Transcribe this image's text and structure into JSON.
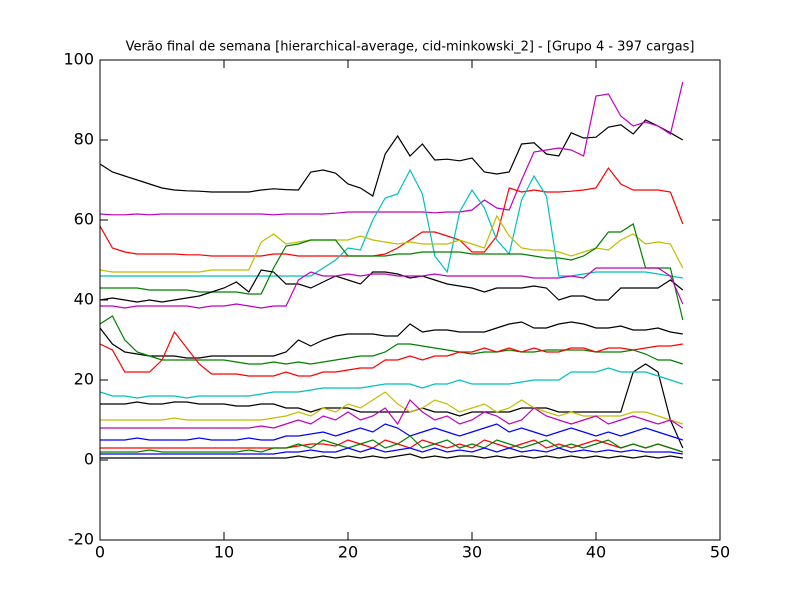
{
  "chart_data": {
    "type": "line",
    "title": "Verão final de semana [hierarchical-average, cid-minkowski_2] - [Grupo 4 - 397 cargas]",
    "x": [
      0,
      1,
      2,
      3,
      4,
      5,
      6,
      7,
      8,
      9,
      10,
      11,
      12,
      13,
      14,
      15,
      16,
      17,
      18,
      19,
      20,
      21,
      22,
      23,
      24,
      25,
      26,
      27,
      28,
      29,
      30,
      31,
      32,
      33,
      34,
      35,
      36,
      37,
      38,
      39,
      40,
      41,
      42,
      43,
      44,
      45,
      46,
      47
    ],
    "xlim": [
      0,
      50
    ],
    "xticks": [
      0,
      10,
      20,
      30,
      40,
      50
    ],
    "ylim": [
      -20,
      100
    ],
    "yticks": [
      -20,
      0,
      20,
      40,
      60,
      80,
      100
    ],
    "grid": false,
    "series": [
      {
        "color": "#000000",
        "values": [
          74,
          72,
          71,
          70,
          69,
          68,
          67.5,
          67.3,
          67.2,
          67,
          67,
          67,
          67,
          67.5,
          67.8,
          67.6,
          67.5,
          72,
          72.5,
          71.7,
          69,
          68,
          66,
          76.5,
          81,
          76,
          79,
          75,
          75.2,
          74.8,
          75.5,
          72,
          71.5,
          72,
          79,
          79.3,
          76.5,
          76,
          81.8,
          80.5,
          80.7,
          83.2,
          83.8,
          81.5,
          85,
          83.5,
          81.8,
          80
        ]
      },
      {
        "color": "#bf00bf",
        "values": [
          61.5,
          61.3,
          61.3,
          61.5,
          61.3,
          61.5,
          61.5,
          61.5,
          61.5,
          61.5,
          61.5,
          61.5,
          61.5,
          61.5,
          61.3,
          61.5,
          61.5,
          61.5,
          61.5,
          61.7,
          62,
          62,
          62,
          62,
          62,
          62,
          62,
          61.8,
          62,
          62,
          62.5,
          65,
          63,
          62.5,
          70,
          77,
          77.5,
          78,
          77.5,
          76,
          91,
          91.5,
          86,
          83.5,
          84.5,
          83.5,
          81.5,
          94.5
        ]
      },
      {
        "color": "#ff0000",
        "values": [
          58.5,
          53,
          52,
          51.5,
          51.5,
          51.5,
          51.5,
          51.3,
          51.3,
          51,
          51,
          51,
          51,
          51,
          51.5,
          51.5,
          51,
          51,
          51,
          51,
          51,
          51,
          51,
          51.5,
          53,
          55,
          57,
          57,
          56,
          55,
          52,
          52,
          56,
          68,
          67,
          67.5,
          67,
          67,
          67.2,
          67.5,
          68,
          73,
          69,
          67.5,
          67.5,
          67.5,
          67,
          59
        ]
      },
      {
        "color": "#00bfbf",
        "values": [
          46,
          46,
          46,
          46,
          46,
          46,
          46,
          46,
          46,
          46,
          46,
          46,
          46,
          46,
          46,
          46,
          46,
          46,
          48,
          50,
          53,
          52.5,
          60,
          65.5,
          66.5,
          72.5,
          66.5,
          51,
          47,
          62,
          67.5,
          63,
          55,
          51.5,
          65,
          71,
          66,
          46,
          46,
          46.5,
          47,
          47,
          47,
          47,
          47,
          46.5,
          46,
          45.5
        ]
      },
      {
        "color": "#bfbf00",
        "values": [
          47.5,
          47,
          47,
          47,
          47,
          47,
          47,
          47,
          47,
          47.5,
          47.5,
          47.5,
          47.5,
          54.5,
          56.5,
          54,
          54.5,
          55,
          55,
          55,
          55,
          56,
          55,
          54.5,
          54,
          54.5,
          54,
          54,
          54,
          55,
          54,
          53,
          61,
          56,
          53,
          52.5,
          52.5,
          52,
          51,
          52,
          53,
          52.5,
          55,
          56.5,
          54,
          54.5,
          54,
          48
        ]
      },
      {
        "color": "#008000",
        "values": [
          43,
          43,
          43,
          43,
          42.5,
          42.5,
          42.5,
          42.5,
          42,
          42,
          42,
          42,
          41.5,
          41.5,
          48,
          53.5,
          54,
          55,
          55,
          55,
          51,
          51,
          51,
          51,
          51.5,
          51.5,
          52,
          52,
          52,
          52,
          51.5,
          51.5,
          51.5,
          51.5,
          51.5,
          51,
          50.5,
          50.5,
          50,
          51,
          53,
          57,
          57,
          59,
          48,
          48,
          48,
          35
        ]
      },
      {
        "color": "#000000",
        "values": [
          40,
          40.5,
          40,
          39.5,
          40,
          39.5,
          40,
          40.5,
          41,
          42,
          43,
          44.5,
          42,
          47.5,
          47,
          44,
          44,
          43,
          44.5,
          46,
          45,
          44,
          47,
          47,
          46.5,
          45.5,
          46,
          45,
          44,
          43.5,
          43,
          42,
          43,
          43,
          43,
          43.5,
          43,
          40,
          41,
          41,
          40,
          40,
          43,
          43,
          43,
          43,
          45,
          42.5
        ]
      },
      {
        "color": "#bf00bf",
        "values": [
          38.5,
          38.5,
          38,
          38.5,
          38.5,
          38.5,
          38.5,
          38.5,
          38,
          38.5,
          38.5,
          39,
          38.5,
          38,
          38.5,
          38.5,
          45,
          47,
          46,
          46,
          46.5,
          46,
          46.5,
          46.5,
          46,
          46,
          46,
          46.5,
          46,
          46,
          46,
          46,
          46,
          46,
          46,
          45.5,
          45.5,
          45.5,
          46,
          45.5,
          48,
          48,
          48,
          48,
          48,
          48,
          46,
          39
        ]
      },
      {
        "color": "#000000",
        "values": [
          33,
          29,
          27,
          26.5,
          26,
          26,
          26,
          25.5,
          25.5,
          26,
          26,
          26,
          26,
          26,
          26,
          27,
          30,
          28.5,
          30,
          31,
          31.5,
          31.5,
          31.5,
          31,
          31,
          34,
          32,
          32.5,
          32.5,
          32,
          32,
          32,
          33,
          34,
          34.5,
          33,
          33,
          34,
          34.5,
          34,
          33,
          33,
          33.5,
          32.5,
          32.5,
          33,
          32,
          31.5
        ]
      },
      {
        "color": "#008000",
        "values": [
          34,
          36,
          30,
          27,
          26,
          25,
          25,
          25,
          25,
          25,
          25,
          24.5,
          24,
          24,
          24.5,
          24,
          24.5,
          24,
          24.5,
          25,
          25.5,
          26,
          26,
          27,
          29,
          29,
          28.5,
          28,
          27.5,
          27,
          26.5,
          27,
          27,
          27.5,
          27,
          27,
          27.5,
          27.5,
          27.5,
          27.5,
          27,
          27,
          27,
          27.5,
          26.5,
          25,
          25,
          24
        ]
      },
      {
        "color": "#ff0000",
        "values": [
          29,
          27.5,
          22,
          22,
          22,
          25,
          32,
          28,
          24,
          21.5,
          21.5,
          21.5,
          21,
          21,
          21,
          22,
          21,
          21,
          22,
          22,
          22.5,
          23,
          23,
          25,
          25,
          26,
          25,
          26,
          26,
          27,
          27,
          28,
          27,
          28,
          27,
          28,
          27,
          27,
          28,
          28,
          27,
          28,
          28,
          27.5,
          28,
          28.5,
          28.5,
          29
        ]
      },
      {
        "color": "#000000",
        "values": [
          14,
          14,
          14,
          14.5,
          14,
          14,
          14.5,
          14.5,
          14,
          14,
          14,
          13.5,
          13.5,
          14,
          14,
          13,
          13,
          12,
          13,
          13,
          13,
          12,
          12,
          12,
          12,
          12,
          13,
          12,
          12,
          11,
          12,
          12,
          12,
          12,
          13,
          13,
          13,
          12,
          12,
          12,
          12,
          12,
          12,
          22,
          24,
          22,
          10,
          3
        ]
      },
      {
        "color": "#00bfbf",
        "values": [
          17,
          16,
          16,
          15.5,
          16,
          16,
          16,
          15.5,
          16,
          16,
          16,
          16,
          16,
          16.5,
          17,
          17,
          17,
          17.5,
          18,
          18,
          18,
          18,
          18.5,
          19,
          19,
          19,
          18,
          19,
          19,
          20,
          19,
          19,
          19,
          19,
          19.5,
          20,
          20,
          20,
          22,
          22,
          22,
          23,
          22,
          22,
          22,
          21,
          20,
          19
        ]
      },
      {
        "color": "#bfbf00",
        "values": [
          10,
          10,
          10,
          10,
          10,
          10,
          10.5,
          10,
          10,
          10,
          10,
          10,
          10,
          10,
          10.5,
          11,
          12,
          11,
          13,
          12,
          14,
          13,
          15,
          17,
          14,
          12,
          13,
          15,
          14,
          12,
          13,
          14,
          12,
          13,
          15,
          13,
          12,
          11,
          12,
          11,
          11,
          11,
          11,
          12,
          12,
          11,
          10,
          9
        ]
      },
      {
        "color": "#bf00bf",
        "values": [
          8,
          8,
          8,
          8,
          8,
          8,
          8,
          8,
          8,
          8,
          8,
          8,
          8,
          8.5,
          8,
          9,
          10,
          9,
          11,
          10,
          12,
          10,
          11,
          13,
          9,
          15,
          12,
          10,
          11,
          9,
          10,
          12,
          11,
          9,
          10,
          13,
          11,
          10,
          9,
          10,
          11,
          9,
          10,
          11,
          10,
          9,
          10,
          8
        ]
      },
      {
        "color": "#0000ff",
        "values": [
          5,
          5,
          5,
          5.5,
          5,
          5,
          5,
          5,
          5.5,
          5,
          5,
          5,
          5.5,
          5,
          5,
          6,
          6,
          6.5,
          7,
          6,
          7,
          8,
          7,
          9,
          8,
          6,
          7,
          8,
          7,
          6,
          7,
          8,
          9,
          7,
          8,
          7,
          6,
          7,
          8,
          7,
          6,
          7,
          6,
          7,
          8,
          7,
          6,
          5
        ]
      },
      {
        "color": "#ff0000",
        "values": [
          3,
          3,
          3,
          3,
          3,
          3,
          3,
          3,
          3,
          3,
          3,
          3,
          3,
          3,
          3,
          3,
          3.5,
          4,
          4,
          3.5,
          5,
          4,
          3,
          5,
          4,
          3,
          5,
          4,
          3,
          4,
          3,
          5,
          4,
          3,
          4,
          5,
          3,
          4,
          3,
          4,
          5,
          4,
          3,
          4,
          3,
          4,
          3,
          2
        ]
      },
      {
        "color": "#008000",
        "values": [
          2,
          2,
          2,
          2,
          2.5,
          2,
          2,
          2,
          2,
          2,
          2,
          2,
          2.5,
          2,
          3,
          3,
          4,
          3,
          5,
          4,
          3,
          4,
          5,
          3,
          4,
          6,
          3,
          4,
          5,
          3,
          4,
          3,
          5,
          4,
          3,
          4,
          5,
          3,
          4,
          3,
          4,
          5,
          3,
          4,
          3,
          4,
          3,
          2
        ]
      },
      {
        "color": "#0000ff",
        "values": [
          1.5,
          1.5,
          1.5,
          1.5,
          1.5,
          1.5,
          1.5,
          1.5,
          1.5,
          1.5,
          1.5,
          1.5,
          1.5,
          1.5,
          1.5,
          2,
          2,
          2.5,
          2,
          2,
          3,
          2,
          3,
          2,
          2.5,
          3,
          2,
          3,
          2,
          2.5,
          2,
          3,
          2,
          3,
          2,
          2.5,
          2,
          3,
          2,
          2.5,
          2,
          2.5,
          2,
          2.5,
          2,
          2,
          2,
          1.5
        ]
      },
      {
        "color": "#000000",
        "values": [
          0.5,
          0.5,
          0.5,
          0.5,
          0.5,
          0.5,
          0.5,
          0.5,
          0.5,
          0.5,
          0.5,
          0.5,
          0.5,
          0.5,
          0.5,
          0.5,
          1,
          0.5,
          1,
          0.5,
          1,
          0.5,
          1,
          0.5,
          1,
          1.5,
          0.5,
          1,
          0.5,
          1,
          1,
          0.5,
          1,
          0.5,
          1,
          0.5,
          1,
          0.5,
          1,
          0.5,
          1,
          0.5,
          1,
          0.5,
          1,
          0.5,
          1,
          0.5
        ]
      }
    ]
  }
}
